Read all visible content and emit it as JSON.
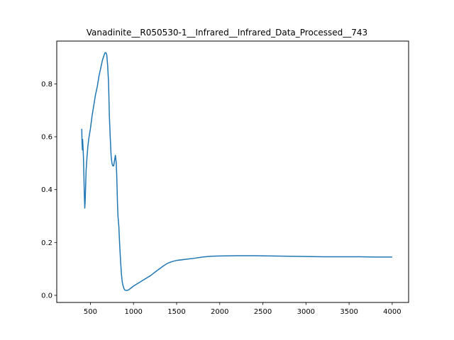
{
  "chart_data": {
    "type": "line",
    "title": "Vanadinite__R050530-1__Infrared__Infrared_Data_Processed__743",
    "xlabel": "",
    "ylabel": "",
    "xlim": [
      110,
      4190
    ],
    "ylim": [
      -0.027,
      0.962
    ],
    "x_ticks": [
      500,
      1000,
      1500,
      2000,
      2500,
      3000,
      3500,
      4000
    ],
    "y_ticks": [
      0.0,
      0.2,
      0.4,
      0.6,
      0.8
    ],
    "grid": false,
    "legend": "none",
    "series": [
      {
        "color": "#1f77b4",
        "x": [
          400,
          403,
          406,
          408,
          410,
          413,
          416,
          420,
          425,
          430,
          435,
          440,
          450,
          460,
          470,
          480,
          500,
          520,
          540,
          560,
          580,
          600,
          620,
          640,
          660,
          670,
          680,
          690,
          700,
          710,
          715,
          720,
          730,
          740,
          750,
          760,
          770,
          780,
          790,
          800,
          805,
          810,
          815,
          820,
          830,
          840,
          850,
          860,
          870,
          880,
          890,
          900,
          920,
          940,
          960,
          980,
          1000,
          1050,
          1100,
          1150,
          1200,
          1250,
          1300,
          1350,
          1400,
          1450,
          1500,
          1600,
          1700,
          1800,
          1900,
          2000,
          2200,
          2400,
          2600,
          2800,
          3000,
          3200,
          3400,
          3600,
          3800,
          4000
        ],
        "y": [
          0.63,
          0.58,
          0.56,
          0.55,
          0.59,
          0.57,
          0.55,
          0.52,
          0.45,
          0.38,
          0.33,
          0.36,
          0.47,
          0.52,
          0.56,
          0.59,
          0.63,
          0.68,
          0.72,
          0.76,
          0.79,
          0.83,
          0.86,
          0.89,
          0.91,
          0.918,
          0.918,
          0.91,
          0.87,
          0.81,
          0.75,
          0.68,
          0.6,
          0.53,
          0.5,
          0.49,
          0.49,
          0.51,
          0.53,
          0.5,
          0.46,
          0.4,
          0.34,
          0.3,
          0.26,
          0.19,
          0.13,
          0.08,
          0.05,
          0.035,
          0.025,
          0.02,
          0.018,
          0.02,
          0.025,
          0.03,
          0.035,
          0.045,
          0.055,
          0.065,
          0.075,
          0.088,
          0.1,
          0.112,
          0.122,
          0.128,
          0.132,
          0.136,
          0.14,
          0.145,
          0.148,
          0.149,
          0.15,
          0.15,
          0.149,
          0.148,
          0.147,
          0.146,
          0.146,
          0.146,
          0.145,
          0.145
        ]
      }
    ]
  }
}
